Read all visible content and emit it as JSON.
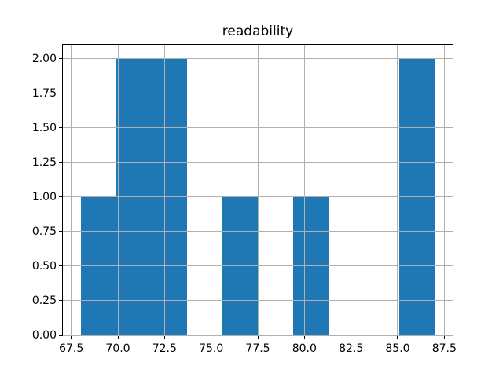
{
  "figure": {
    "background": "#ffffff"
  },
  "chart_data": {
    "type": "bar",
    "subtype": "histogram",
    "title": "readability",
    "xlabel": "",
    "ylabel": "",
    "bar_color": "#1f77b4",
    "grid_color": "#b0b0b0",
    "spine_color": "#000000",
    "grid": true,
    "legend_position": "none",
    "bin_edges": [
      68.0,
      69.9,
      71.8,
      73.7,
      75.6,
      77.5,
      79.4,
      81.3,
      83.2,
      85.1,
      87.0
    ],
    "counts": [
      1,
      2,
      2,
      0,
      1,
      0,
      1,
      0,
      0,
      2
    ],
    "xlim": [
      67.05,
      87.95
    ],
    "ylim": [
      0,
      2.1
    ],
    "xticks": [
      {
        "value": 67.5,
        "label": "67.5"
      },
      {
        "value": 70.0,
        "label": "70.0"
      },
      {
        "value": 72.5,
        "label": "72.5"
      },
      {
        "value": 75.0,
        "label": "75.0"
      },
      {
        "value": 77.5,
        "label": "77.5"
      },
      {
        "value": 80.0,
        "label": "80.0"
      },
      {
        "value": 82.5,
        "label": "82.5"
      },
      {
        "value": 85.0,
        "label": "85.0"
      },
      {
        "value": 87.5,
        "label": "87.5"
      }
    ],
    "yticks": [
      {
        "value": 0.0,
        "label": "0.00"
      },
      {
        "value": 0.25,
        "label": "0.25"
      },
      {
        "value": 0.5,
        "label": "0.50"
      },
      {
        "value": 0.75,
        "label": "0.75"
      },
      {
        "value": 1.0,
        "label": "1.00"
      },
      {
        "value": 1.25,
        "label": "1.25"
      },
      {
        "value": 1.5,
        "label": "1.50"
      },
      {
        "value": 1.75,
        "label": "1.75"
      },
      {
        "value": 2.0,
        "label": "2.00"
      }
    ]
  }
}
